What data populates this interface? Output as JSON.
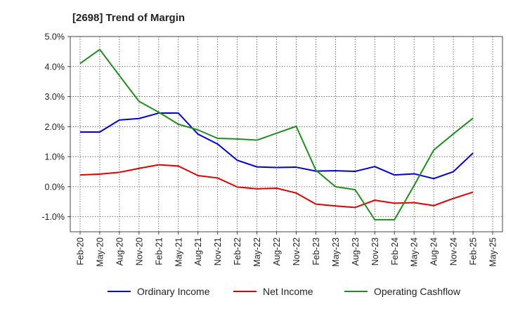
{
  "chart_data": {
    "type": "line",
    "title": "[2698]  Trend of Margin",
    "xlabel": "",
    "ylabel": "",
    "ylim": [
      -1.5,
      5.0
    ],
    "yticks": [
      5.0,
      4.0,
      3.0,
      2.0,
      1.0,
      0.0,
      -1.0
    ],
    "ytick_labels": [
      "5.0%",
      "4.0%",
      "3.0%",
      "2.0%",
      "1.0%",
      "0.0%",
      "-1.0%"
    ],
    "x": [
      "Feb-20",
      "May-20",
      "Aug-20",
      "Nov-20",
      "Feb-21",
      "May-21",
      "Aug-21",
      "Nov-21",
      "Feb-22",
      "May-22",
      "Aug-22",
      "Nov-22",
      "Feb-23",
      "May-23",
      "Aug-23",
      "Nov-23",
      "Feb-24",
      "May-24",
      "Aug-24",
      "Nov-24",
      "Feb-25",
      "May-25"
    ],
    "grid": true,
    "legend_position": "bottom",
    "series": [
      {
        "name": "Ordinary Income",
        "color": "#0000cc",
        "values": [
          1.82,
          1.82,
          2.22,
          2.27,
          2.45,
          2.45,
          1.75,
          1.42,
          0.88,
          0.66,
          0.64,
          0.65,
          0.52,
          0.53,
          0.51,
          0.67,
          0.39,
          0.43,
          0.27,
          0.5,
          1.12,
          null
        ]
      },
      {
        "name": "Net Income",
        "color": "#dd0000",
        "values": [
          0.39,
          0.42,
          0.48,
          0.61,
          0.73,
          0.69,
          0.37,
          0.29,
          -0.01,
          -0.07,
          -0.05,
          -0.21,
          -0.58,
          -0.64,
          -0.69,
          -0.45,
          -0.55,
          -0.53,
          -0.63,
          -0.39,
          -0.18,
          null
        ]
      },
      {
        "name": "Operating Cashflow",
        "color": "#228b22",
        "values": [
          4.1,
          4.57,
          3.7,
          2.84,
          2.48,
          2.08,
          1.89,
          1.61,
          1.59,
          1.55,
          1.78,
          2.01,
          0.55,
          0.0,
          -0.1,
          -1.1,
          -1.1,
          0.04,
          1.22,
          1.76,
          2.28,
          null
        ]
      }
    ]
  }
}
